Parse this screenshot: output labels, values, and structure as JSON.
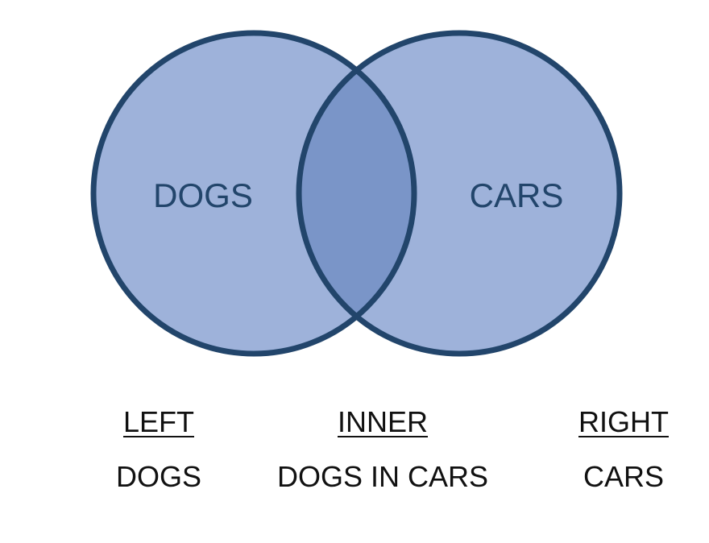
{
  "colors": {
    "circle_fill": "#9eb2da",
    "overlap_fill": "#7a95c8",
    "outline": "#22456b",
    "label_text": "#22456b",
    "legend_text": "#111111"
  },
  "venn": {
    "left_label": "DOGS",
    "right_label": "CARS"
  },
  "legend": {
    "left": {
      "heading": "LEFT",
      "value": "DOGS"
    },
    "inner": {
      "heading": "INNER",
      "value": "DOGS IN CARS"
    },
    "right": {
      "heading": "RIGHT",
      "value": "CARS"
    }
  }
}
